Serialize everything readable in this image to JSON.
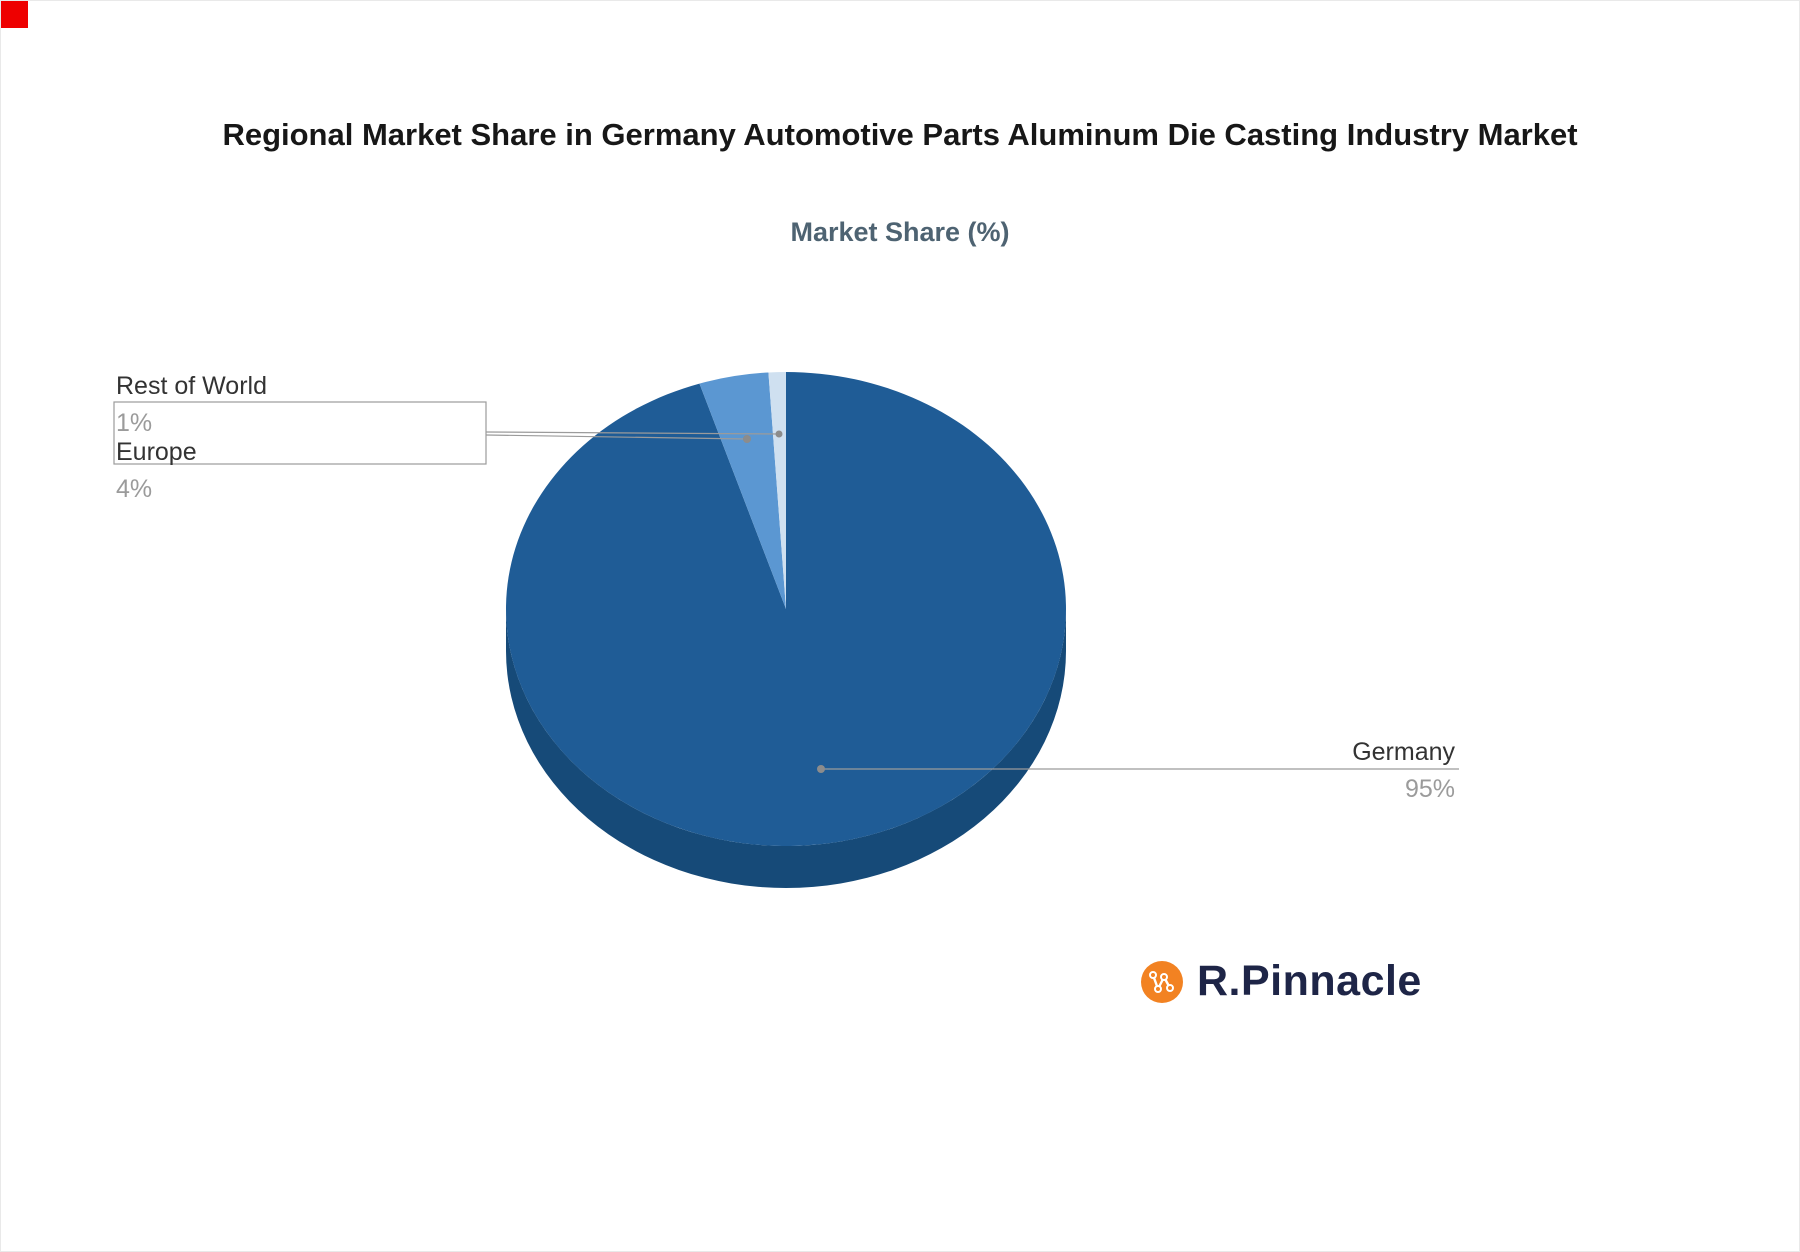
{
  "page": {
    "corner_mark_color": "#EE0000",
    "background": "#FFFFFF"
  },
  "title": "Regional Market Share in Germany Automotive Parts Aluminum Die Casting Industry Market",
  "subtitle": "Market Share (%)",
  "chart_data": {
    "type": "pie",
    "title": "Regional Market Share in Germany Automotive Parts Aluminum Die Casting Industry Market",
    "subtitle": "Market Share (%)",
    "unit": "%",
    "effect": "3d",
    "legend_position": "none",
    "direction": "clockwise",
    "start_angle_deg": -90,
    "categories": [
      "Germany",
      "Europe",
      "Rest of World"
    ],
    "values": [
      95,
      4,
      1
    ],
    "slice_colors": [
      "#1F5C96",
      "#5B97D2",
      "#CFE0F0"
    ],
    "side_color": "#164A78",
    "labels": [
      {
        "name": "Germany",
        "value_text": "95%"
      },
      {
        "name": "Europe",
        "value_text": "4%"
      },
      {
        "name": "Rest of World",
        "value_text": "1%"
      }
    ]
  },
  "brand": {
    "name": "R.Pinnacle",
    "icon": "network-nodes-icon",
    "icon_color": "#F28222",
    "text_color": "#1E2547"
  }
}
